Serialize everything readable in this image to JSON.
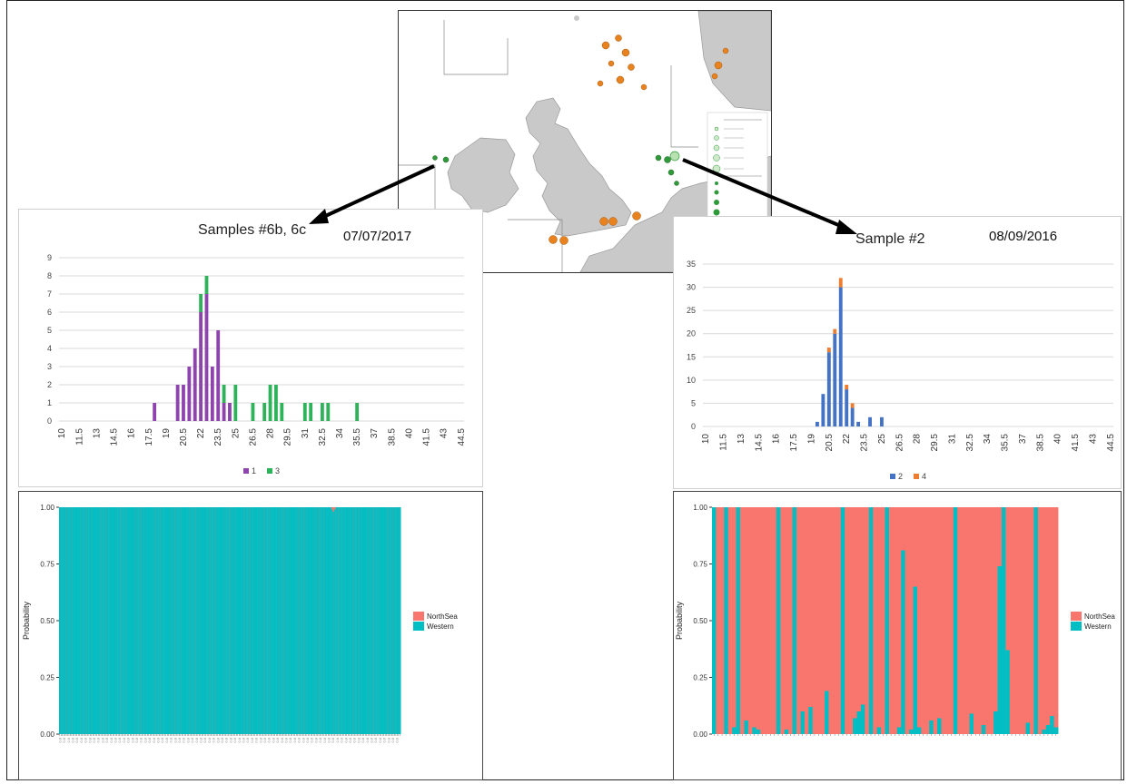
{
  "colors": {
    "series_1": "#8e44ad",
    "series_3": "#2fb35a",
    "series_2": "#4472c4",
    "series_4": "#ed7d31",
    "northsea": "#f8766d",
    "western": "#00bfc4",
    "map_orange": "#e8821e",
    "map_green": "#2e9a3a"
  },
  "icons": {
    "arrow_left": "arrow-icon",
    "arrow_right": "arrow-icon"
  },
  "panels": {
    "left_hist": {
      "title": "Samples #6b, 6c",
      "date": "07/07/2017"
    },
    "right_hist": {
      "title": "Sample #2",
      "date": "08/09/2016"
    },
    "left_assign": {
      "ylabel": "Probability"
    },
    "right_assign": {
      "ylabel": "Probability"
    }
  },
  "chart_data": [
    {
      "type": "bar",
      "stacked": true,
      "title": "Samples #6b, 6c",
      "x": [
        10,
        10.5,
        11,
        11.5,
        12,
        12.5,
        13,
        13.5,
        14,
        14.5,
        15,
        15.5,
        16,
        16.5,
        17,
        17.5,
        18,
        18.5,
        19,
        19.5,
        20,
        20.5,
        21,
        21.5,
        22,
        22.5,
        23,
        23.5,
        24,
        24.5,
        25,
        25.5,
        26,
        26.5,
        27,
        27.5,
        28,
        28.5,
        29,
        29.5,
        30,
        30.5,
        31,
        31.5,
        32,
        32.5,
        33,
        33.5,
        34,
        34.5,
        35,
        35.5,
        36,
        36.5,
        37,
        37.5,
        38,
        38.5,
        39,
        39.5,
        40,
        40.5,
        41,
        41.5,
        42,
        42.5,
        43,
        43.5,
        44,
        44.5
      ],
      "tick_labels": [
        "10",
        "11.5",
        "13",
        "14.5",
        "16",
        "17.5",
        "19",
        "20.5",
        "22",
        "23.5",
        "25",
        "26.5",
        "28",
        "29.5",
        "31",
        "32.5",
        "34",
        "35.5",
        "37",
        "38.5",
        "40",
        "41.5",
        "43",
        "44.5"
      ],
      "series": [
        {
          "name": "1",
          "values": [
            0,
            0,
            0,
            0,
            0,
            0,
            0,
            0,
            0,
            0,
            0,
            0,
            0,
            0,
            0,
            0,
            1,
            0,
            0,
            0,
            2,
            2,
            3,
            4,
            6,
            7,
            3,
            5,
            1,
            1,
            0,
            0,
            0,
            0,
            0,
            0,
            0,
            0,
            0,
            0,
            0,
            0,
            0,
            0,
            0,
            0,
            0,
            0,
            0,
            0,
            0,
            0,
            0,
            0,
            0,
            0,
            0,
            0,
            0,
            0,
            0,
            0,
            0,
            0,
            0,
            0,
            0,
            0,
            0,
            0
          ]
        },
        {
          "name": "3",
          "values": [
            0,
            0,
            0,
            0,
            0,
            0,
            0,
            0,
            0,
            0,
            0,
            0,
            0,
            0,
            0,
            0,
            0,
            0,
            0,
            0,
            0,
            0,
            0,
            0,
            1,
            1,
            0,
            0,
            1,
            0,
            2,
            0,
            0,
            1,
            0,
            1,
            2,
            2,
            1,
            0,
            0,
            0,
            1,
            1,
            0,
            1,
            1,
            0,
            0,
            0,
            0,
            1,
            0,
            0,
            0,
            0,
            0,
            0,
            0,
            0,
            0,
            0,
            0,
            0,
            0,
            0,
            0,
            0,
            0,
            0
          ]
        }
      ],
      "ylim": [
        0,
        9
      ],
      "yticks": [
        0,
        1,
        2,
        3,
        4,
        5,
        6,
        7,
        8,
        9
      ],
      "legend": "bottom"
    },
    {
      "type": "bar",
      "stacked": true,
      "title": "Sample #2",
      "x": [
        10,
        10.5,
        11,
        11.5,
        12,
        12.5,
        13,
        13.5,
        14,
        14.5,
        15,
        15.5,
        16,
        16.5,
        17,
        17.5,
        18,
        18.5,
        19,
        19.5,
        20,
        20.5,
        21,
        21.5,
        22,
        22.5,
        23,
        23.5,
        24,
        24.5,
        25,
        25.5,
        26,
        26.5,
        27,
        27.5,
        28,
        28.5,
        29,
        29.5,
        30,
        30.5,
        31,
        31.5,
        32,
        32.5,
        33,
        33.5,
        34,
        34.5,
        35,
        35.5,
        36,
        36.5,
        37,
        37.5,
        38,
        38.5,
        39,
        39.5,
        40,
        40.5,
        41,
        41.5,
        42,
        42.5,
        43,
        43.5,
        44,
        44.5
      ],
      "tick_labels": [
        "10",
        "11.5",
        "13",
        "14.5",
        "16",
        "17.5",
        "19",
        "20.5",
        "22",
        "23.5",
        "25",
        "26.5",
        "28",
        "29.5",
        "31",
        "32.5",
        "34",
        "35.5",
        "37",
        "38.5",
        "40",
        "41.5",
        "43",
        "44.5"
      ],
      "series": [
        {
          "name": "2",
          "values": [
            0,
            0,
            0,
            0,
            0,
            0,
            0,
            0,
            0,
            0,
            0,
            0,
            0,
            0,
            0,
            0,
            0,
            0,
            0,
            1,
            7,
            16,
            20,
            30,
            8,
            4,
            1,
            0,
            2,
            0,
            2,
            0,
            0,
            0,
            0,
            0,
            0,
            0,
            0,
            0,
            0,
            0,
            0,
            0,
            0,
            0,
            0,
            0,
            0,
            0,
            0,
            0,
            0,
            0,
            0,
            0,
            0,
            0,
            0,
            0,
            0,
            0,
            0,
            0,
            0,
            0,
            0,
            0,
            0,
            0
          ]
        },
        {
          "name": "4",
          "values": [
            0,
            0,
            0,
            0,
            0,
            0,
            0,
            0,
            0,
            0,
            0,
            0,
            0,
            0,
            0,
            0,
            0,
            0,
            0,
            0,
            0,
            1,
            1,
            2,
            1,
            1,
            0,
            0,
            0,
            0,
            0,
            0,
            0,
            0,
            0,
            0,
            0,
            0,
            0,
            0,
            0,
            0,
            0,
            0,
            0,
            0,
            0,
            0,
            0,
            0,
            0,
            0,
            0,
            0,
            0,
            0,
            0,
            0,
            0,
            0,
            0,
            0,
            0,
            0,
            0,
            0,
            0,
            0,
            0,
            0
          ]
        }
      ],
      "ylim": [
        0,
        35
      ],
      "yticks": [
        0,
        5,
        10,
        15,
        20,
        25,
        30,
        35
      ],
      "legend": "bottom"
    },
    {
      "type": "bar",
      "stacked": true,
      "ylabel": "Probability",
      "yticks": [
        "0.00",
        "0.25",
        "0.50",
        "0.75",
        "1.00"
      ],
      "ylim": [
        0,
        1
      ],
      "legend_entries": [
        "NorthSea",
        "Western"
      ],
      "legend": "right",
      "western": [
        1,
        1,
        1,
        1,
        1,
        1,
        1,
        1,
        1,
        1,
        1,
        1,
        1,
        1,
        1,
        1,
        1,
        1,
        1,
        1,
        1,
        1,
        1,
        1,
        1,
        1,
        1,
        1,
        1,
        1,
        1,
        1,
        1,
        1,
        1,
        1,
        1,
        1,
        1,
        1,
        1,
        1,
        1,
        1,
        1,
        1,
        1,
        1,
        1,
        1,
        1,
        1,
        1,
        1,
        1,
        1,
        1,
        1,
        1,
        1,
        1,
        1,
        1,
        1,
        1,
        1,
        1,
        1,
        1,
        1,
        1,
        1,
        1,
        1,
        1,
        1,
        1,
        1,
        1,
        1,
        1,
        1,
        1,
        1,
        1,
        1,
        1,
        1,
        1,
        1,
        1,
        1,
        1,
        1,
        1,
        1,
        1,
        1,
        1,
        1,
        1,
        1,
        1,
        1,
        1,
        1,
        1,
        1,
        1,
        1,
        1,
        1,
        1,
        1,
        1,
        1,
        1,
        1,
        1,
        1,
        1,
        1,
        1,
        1,
        1,
        1,
        1,
        1,
        1,
        1,
        1,
        1,
        1,
        1,
        1,
        1,
        1,
        1,
        1,
        1,
        1,
        1,
        1,
        1,
        1,
        1,
        1,
        1,
        1,
        1,
        1,
        1,
        1,
        1,
        1,
        1,
        1,
        1,
        1,
        1,
        1,
        1,
        1,
        1,
        1,
        1,
        1,
        1,
        1,
        1,
        1,
        1,
        1,
        1,
        1,
        1,
        1,
        1,
        1,
        1,
        1,
        1,
        1,
        1,
        1,
        1,
        1,
        1,
        1,
        1,
        1,
        1,
        1,
        1,
        1,
        1,
        1,
        1,
        1,
        1,
        1,
        1,
        1,
        1,
        1,
        0.99,
        0.98,
        0.99,
        1,
        1,
        1,
        1,
        1,
        1,
        1,
        1,
        1,
        1,
        1,
        1,
        1,
        1,
        1,
        1,
        1,
        1,
        1,
        1,
        1,
        1,
        1,
        1,
        1,
        1,
        1,
        1,
        1,
        1,
        1,
        1,
        1,
        1,
        1,
        1,
        1,
        1,
        1,
        1,
        1,
        1,
        1,
        1,
        1,
        1,
        1,
        1,
        1
      ]
    },
    {
      "type": "bar",
      "stacked": true,
      "ylabel": "Probability",
      "yticks": [
        "0.00",
        "0.25",
        "0.50",
        "0.75",
        "1.00"
      ],
      "ylim": [
        0,
        1
      ],
      "legend_entries": [
        "NorthSea",
        "Western"
      ],
      "legend": "right",
      "western": [
        1,
        0,
        0,
        1,
        0,
        0.03,
        1,
        0,
        0.06,
        0,
        0.03,
        0.02,
        0,
        0,
        0,
        0,
        1,
        0,
        0.02,
        0,
        1,
        0,
        0.1,
        0,
        0.12,
        0,
        0,
        0,
        0.19,
        0,
        0,
        0,
        1,
        0,
        0,
        0.07,
        0.1,
        0.13,
        0,
        1,
        0,
        0.03,
        0,
        1,
        0,
        0,
        0.03,
        0.81,
        0,
        0.02,
        0.65,
        0.03,
        0,
        0,
        0.06,
        0,
        0.07,
        0,
        0,
        0,
        1,
        0,
        0,
        0,
        0.09,
        0,
        0,
        0.04,
        0,
        0,
        0.1,
        0.74,
        1,
        0.37,
        0,
        0,
        0,
        0,
        0.05,
        0,
        1,
        0,
        0.02,
        0.04,
        0.08,
        0.03
      ]
    }
  ],
  "left_assign_xlabels": [
    "0.8",
    "0.8",
    "0.8",
    "0.8",
    "0.8",
    "0.8",
    "0.8",
    "0.8",
    "0.8",
    "0.8",
    "0.8",
    "0.8",
    "0.8",
    "0.8",
    "0.8",
    "0.8",
    "0.8",
    "0.8",
    "0.8",
    "0.8",
    "0.8",
    "0.8",
    "0.8",
    "0.8",
    "0.8",
    "0.8",
    "0.8",
    "0.8",
    "0.8",
    "0.8",
    "0.8",
    "0.8",
    "0.8",
    "0.8",
    "0.8",
    "0.8",
    "0.8",
    "0.8",
    "0.8",
    "0.8",
    "0.8",
    "0.8",
    "0.8",
    "0.8",
    "0.8",
    "0.8",
    "0.8",
    "0.8",
    "0.8",
    "0.8",
    "0.8",
    "0.8",
    "0.8",
    "0.8",
    "0.8",
    "0.8",
    "0.8",
    "0.8",
    "0.8",
    "0.8",
    "0.8",
    "0.8",
    "0.8",
    "0.8",
    "0.8",
    "0.8",
    "0.8",
    "0.8",
    "0.8",
    "0.8",
    "0.8",
    "0.8",
    "0.8",
    "0.8",
    "0.8",
    "0.8",
    "0.8",
    "0.8",
    "0.8",
    "0.8"
  ]
}
